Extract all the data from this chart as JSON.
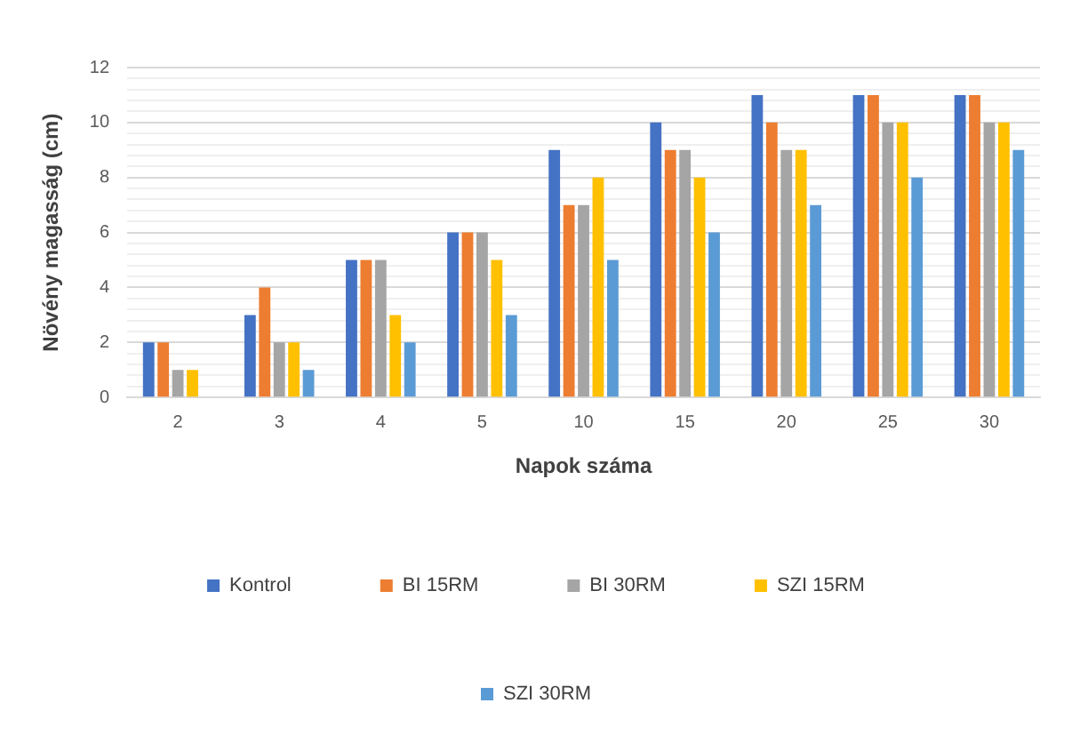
{
  "chart_data": {
    "type": "bar",
    "xlabel": "Napok száma",
    "ylabel": "Növény magasság (cm)",
    "categories": [
      "2",
      "3",
      "4",
      "5",
      "10",
      "15",
      "20",
      "25",
      "30"
    ],
    "series": [
      {
        "name": "Kontrol",
        "color": "#4472c4",
        "values": [
          2,
          3,
          5,
          6,
          9,
          10,
          11,
          11,
          11
        ]
      },
      {
        "name": "BI 15RM",
        "color": "#ed7d31",
        "values": [
          2,
          4,
          5,
          6,
          7,
          9,
          10,
          11,
          11
        ]
      },
      {
        "name": "BI 30RM",
        "color": "#a5a5a5",
        "values": [
          1,
          2,
          5,
          6,
          7,
          9,
          9,
          10,
          10
        ]
      },
      {
        "name": "SZI 15RM",
        "color": "#ffc000",
        "values": [
          1,
          2,
          3,
          5,
          8,
          8,
          9,
          10,
          10
        ]
      },
      {
        "name": "SZI 30RM",
        "color": "#5b9bd5",
        "values": [
          0,
          1,
          2,
          3,
          5,
          6,
          7,
          8,
          9
        ]
      }
    ],
    "ylim": [
      0,
      12
    ],
    "yticks": [
      0,
      {
        "value": 0.4,
        "label": null
      },
      {
        "value": 0.8,
        "label": null
      },
      {
        "value": 1.2,
        "label": null
      },
      {
        "value": 1.6,
        "label": null
      },
      2,
      {
        "value": 2.4,
        "label": null
      },
      {
        "value": 2.8,
        "label": null
      },
      {
        "value": 3.2,
        "label": null
      },
      {
        "value": 3.6,
        "label": null
      },
      4,
      {
        "value": 4.4,
        "label": null
      },
      {
        "value": 4.8,
        "label": null
      },
      {
        "value": 5.2,
        "label": null
      },
      {
        "value": 5.6,
        "label": null
      },
      6,
      {
        "value": 6.4,
        "label": null
      },
      {
        "value": 6.8,
        "label": null
      },
      {
        "value": 7.2,
        "label": null
      },
      {
        "value": 7.6,
        "label": null
      },
      8,
      {
        "value": 8.4,
        "label": null
      },
      {
        "value": 8.8,
        "label": null
      },
      {
        "value": 9.2,
        "label": null
      },
      {
        "value": 9.6,
        "label": null
      },
      10,
      {
        "value": 10.4,
        "label": null
      },
      {
        "value": 10.8,
        "label": null
      },
      {
        "value": 11.2,
        "label": null
      },
      {
        "value": 11.6,
        "label": null
      },
      12
    ],
    "grid": "y",
    "legend": "bottom"
  }
}
